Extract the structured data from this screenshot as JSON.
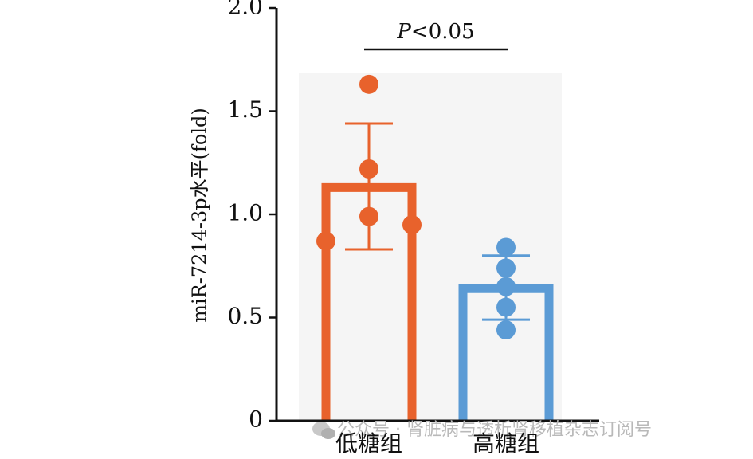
{
  "chart_data": {
    "type": "bar",
    "ylabel": "miR-7214-3p水平(fold)",
    "ylim": [
      0,
      2.0
    ],
    "yticks": [
      0,
      0.5,
      1.0,
      1.5,
      2.0
    ],
    "ytick_labels": [
      "0",
      "0.5",
      "1.0",
      "1.5",
      "2.0"
    ],
    "categories": [
      "低糖组",
      "高糖组"
    ],
    "bars": [
      {
        "category": "低糖组",
        "mean": 1.13,
        "error_upper": 1.44,
        "error_lower": 0.83,
        "points": [
          1.63,
          1.22,
          0.99,
          0.87,
          0.95
        ],
        "color": "#E8622C"
      },
      {
        "category": "高糖组",
        "mean": 0.64,
        "error_upper": 0.8,
        "error_lower": 0.49,
        "points": [
          0.84,
          0.74,
          0.65,
          0.55,
          0.44
        ],
        "color": "#5B9BD5"
      }
    ],
    "significance": {
      "between": [
        "低糖组",
        "高糖组"
      ],
      "label_italic": "P",
      "label_rest": "<0.05"
    }
  },
  "watermark": {
    "text": "公众号 · 肾脏病与透析肾移植杂志订阅号",
    "icon": "wechat-icon"
  }
}
